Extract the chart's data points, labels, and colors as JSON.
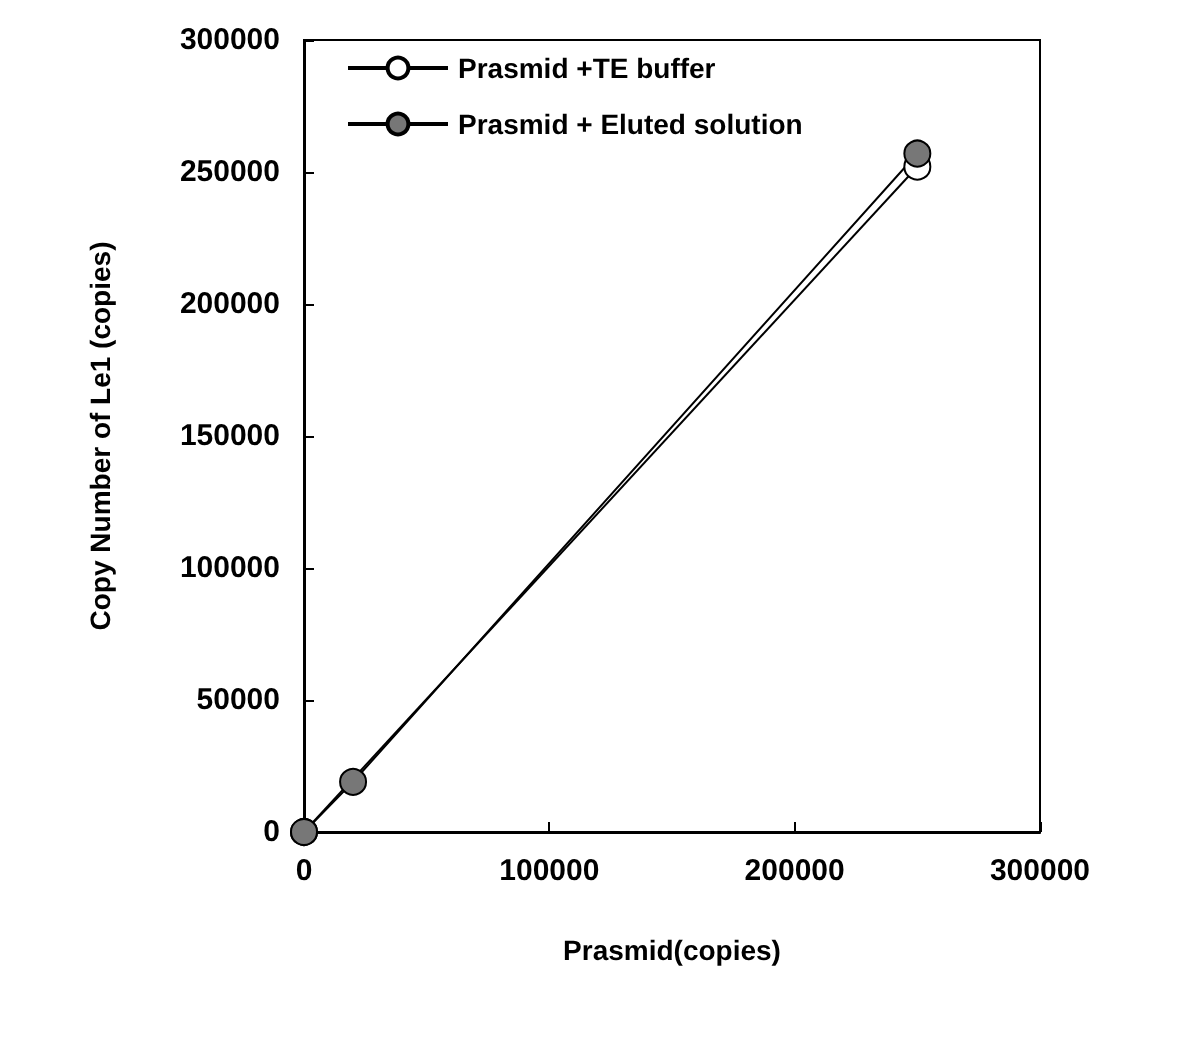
{
  "chart_data": {
    "type": "line",
    "xlabel": "Prasmid(copies)",
    "ylabel": "Copy Number of Le1 (copies)",
    "xlim": [
      0,
      300000
    ],
    "xticks": [
      0,
      100000,
      200000,
      300000
    ],
    "ylim": [
      0,
      300000
    ],
    "yticks": [
      0,
      50000,
      100000,
      150000,
      200000,
      250000,
      300000
    ],
    "grid": false,
    "legend": "top left",
    "marker": "circle",
    "line_style": "solid",
    "series": [
      {
        "name": "Prasmid +TE buffer",
        "color": "#ffffff",
        "x": [
          0,
          20000,
          250000
        ],
        "values": [
          0,
          null,
          252000
        ]
      },
      {
        "name": "Prasmid + Eluted solution",
        "color": "#777777",
        "x": [
          0,
          20000,
          250000
        ],
        "values": [
          0,
          19000,
          257000
        ]
      }
    ]
  }
}
